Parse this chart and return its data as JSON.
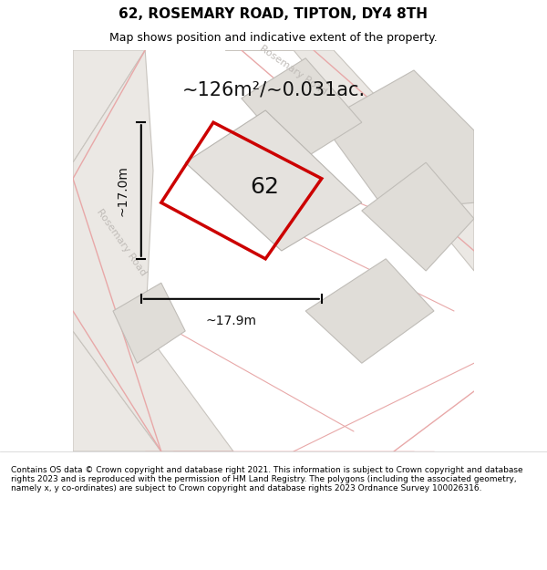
{
  "title": "62, ROSEMARY ROAD, TIPTON, DY4 8TH",
  "subtitle": "Map shows position and indicative extent of the property.",
  "area_text": "~126m²/~0.031ac.",
  "dim_h": "~17.0m",
  "dim_w": "~17.9m",
  "label_62": "62",
  "footer": "Contains OS data © Crown copyright and database right 2021. This information is subject to Crown copyright and database rights 2023 and is reproduced with the permission of HM Land Registry. The polygons (including the associated geometry, namely x, y co-ordinates) are subject to Crown copyright and database rights 2023 Ordnance Survey 100026316.",
  "bg_color": "#f5f4f2",
  "map_bg": "#f0eeeb",
  "road_fill": "#e8e5e0",
  "road_stroke": "#cccccc",
  "plot_fill": "#e8e5e0",
  "plot_stroke": "#bbbbbb",
  "red_stroke": "#dd0000",
  "pink_road": "#e8a0a0",
  "road_label_color": "#bbbbbb",
  "title_color": "#000000",
  "footer_color": "#000000"
}
